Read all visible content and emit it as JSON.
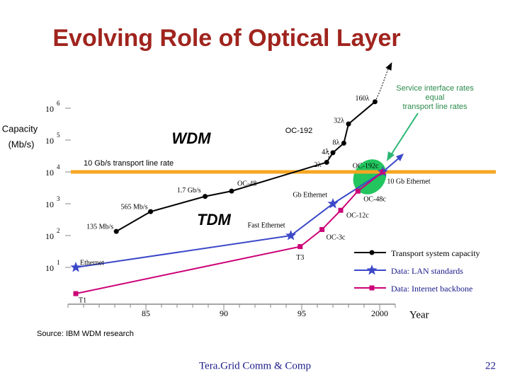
{
  "slide": {
    "title": "Evolving Role of Optical Layer",
    "source": "Source: IBM WDM research",
    "footer": "Tera.Grid Comm & Comp",
    "page_number": "22"
  },
  "chart_data": {
    "type": "line",
    "log_scale_y": true,
    "ylabel": [
      "Capacity",
      "(Mb/s)"
    ],
    "xlabel": "Year",
    "xlim": [
      1980,
      2001
    ],
    "xticks": [
      {
        "value": 1985,
        "label": "85"
      },
      {
        "value": 1990,
        "label": "90"
      },
      {
        "value": 1995,
        "label": "95"
      },
      {
        "value": 2000,
        "label": "2000"
      }
    ],
    "ylim": [
      1,
      10000000
    ],
    "yticks": [
      {
        "value": 10,
        "label": "10",
        "exponent": "1"
      },
      {
        "value": 100,
        "label": "10",
        "exponent": "2"
      },
      {
        "value": 1000,
        "label": "10",
        "exponent": "3"
      },
      {
        "value": 10000,
        "label": "10",
        "exponent": "4"
      },
      {
        "value": 100000,
        "label": "10",
        "exponent": "5"
      },
      {
        "value": 1000000,
        "label": "10",
        "exponent": "6"
      }
    ],
    "reference_line": {
      "value": 10000,
      "label": "10 Gb/s transport line rate",
      "color": "#f5a623"
    },
    "annotations": {
      "wdm": "WDM",
      "tdm": "TDM",
      "oc192": "OC-192",
      "service": [
        "Service interface rates",
        "equal",
        "transport line rates"
      ]
    },
    "series": [
      {
        "name": "Transport system capacity",
        "color": "#000000",
        "marker": "circle",
        "x": [
          1983.1,
          1985.3,
          1988.8,
          1990.5,
          1996.6,
          1997.0,
          1997.7,
          1998.0,
          1999.7
        ],
        "values": [
          135,
          565,
          1700,
          2500,
          20000,
          40000,
          80000,
          320000,
          1600000
        ],
        "value_labels": [
          "135 Mb/s",
          "565 Mb/s",
          "1.7 Gb/s",
          "OC-48",
          "2λ",
          "4λ",
          "8λ",
          "32λ",
          "160λ"
        ]
      },
      {
        "name": "Data: LAN standards",
        "color": "#3b48c8",
        "marker": "star",
        "x": [
          1980.5,
          1994.3,
          1997.0,
          2000.2
        ],
        "values": [
          10,
          100,
          1000,
          10000
        ],
        "value_labels": [
          "Ethernet",
          "Fast Ethernet",
          "Gb Ethernet",
          "10 Gb Ethernet"
        ]
      },
      {
        "name": "Data: Internet backbone",
        "color": "#cc0077",
        "marker": "square",
        "x": [
          1980.5,
          1994.9,
          1996.3,
          1997.5,
          1998.6,
          2000.2
        ],
        "values": [
          1.5,
          45,
          155,
          622,
          2488,
          9953
        ],
        "value_labels": [
          "T1",
          "T3",
          "OC-3c",
          "OC-12c",
          "OC-48c",
          "OC-192c"
        ]
      }
    ]
  }
}
